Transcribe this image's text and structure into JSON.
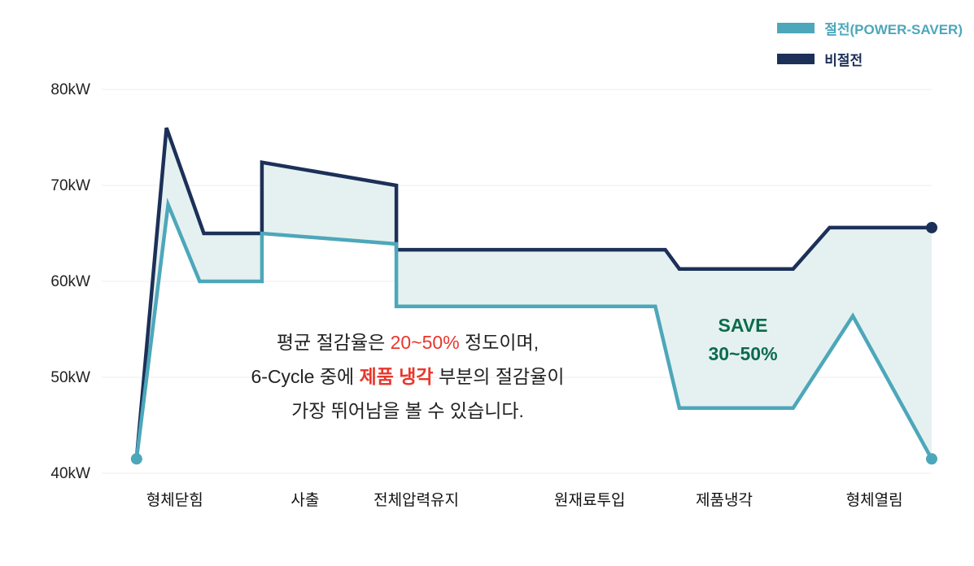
{
  "colors": {
    "teal": "#4DA7BA",
    "navy": "#1C3058",
    "band_fill": "#E5F1F0",
    "grid": "#ECECEC",
    "red": "#E8372D",
    "green": "#0B6B4D"
  },
  "legend": {
    "items": [
      {
        "label": "절전(POWER-SAVER)",
        "color": "#4DA7BA"
      },
      {
        "label": "비절전",
        "color": "#1C3058"
      }
    ]
  },
  "annotation": {
    "line1": {
      "pre": "평균 절감율은 ",
      "highlight": "20~50%",
      "post": " 정도이며,"
    },
    "line2": {
      "pre": "6-Cycle 중에 ",
      "highlight": "제품 냉각",
      "post": " 부분의 절감율이"
    },
    "line3": "가장 뛰어남을 볼 수 있습니다."
  },
  "chart_data": {
    "type": "line",
    "title": "",
    "xlabel": "",
    "ylabel": "kW",
    "ylim": [
      40,
      80
    ],
    "grid": true,
    "legend_position": "top-right",
    "band_fill": "#E5F1F0",
    "yticks": [
      {
        "value": 80,
        "label": "80kW"
      },
      {
        "value": 70,
        "label": "70kW"
      },
      {
        "value": 60,
        "label": "60kW"
      },
      {
        "value": 50,
        "label": "50kW"
      },
      {
        "value": 40,
        "label": "40kW"
      }
    ],
    "categories": [
      {
        "label": "형체닫힘",
        "x_pct": 8.8
      },
      {
        "label": "사출",
        "x_pct": 24.5
      },
      {
        "label": "전체압력유지",
        "x_pct": 37.9
      },
      {
        "label": "원재료투입",
        "x_pct": 58.8
      },
      {
        "label": "제품냉각",
        "x_pct": 75.0
      },
      {
        "label": "형체열림",
        "x_pct": 93.1
      }
    ],
    "series": [
      {
        "name": "절전(POWER-SAVER)",
        "color": "#4DA7BA",
        "points": [
          [
            4.2,
            41.5
          ],
          [
            8.0,
            68.0
          ],
          [
            11.8,
            60.0
          ],
          [
            19.3,
            60.0
          ],
          [
            19.3,
            65.0
          ],
          [
            35.5,
            63.9
          ],
          [
            35.5,
            57.4
          ],
          [
            66.7,
            57.4
          ],
          [
            69.6,
            46.8
          ],
          [
            83.3,
            46.8
          ],
          [
            90.5,
            56.4
          ],
          [
            100,
            41.5
          ]
        ]
      },
      {
        "name": "비절전",
        "color": "#1C3058",
        "points": [
          [
            4.2,
            41.5
          ],
          [
            7.8,
            76.0
          ],
          [
            12.3,
            65.0
          ],
          [
            19.3,
            65.0
          ],
          [
            19.3,
            72.4
          ],
          [
            35.5,
            70.0
          ],
          [
            35.5,
            63.3
          ],
          [
            67.9,
            63.3
          ],
          [
            69.6,
            61.3
          ],
          [
            83.3,
            61.3
          ],
          [
            87.7,
            65.6
          ],
          [
            100,
            65.6
          ]
        ]
      }
    ],
    "markers": [
      {
        "x": 4.2,
        "y": 41.5,
        "series": 0
      },
      {
        "x": 100,
        "y": 41.5,
        "series": 0
      },
      {
        "x": 100,
        "y": 65.6,
        "series": 1
      }
    ],
    "save_label": {
      "line1": "SAVE",
      "line2": "30~50%"
    }
  }
}
